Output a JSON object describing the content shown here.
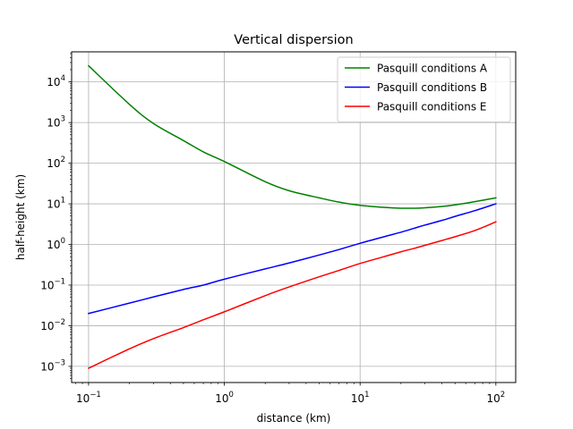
{
  "chart_data": {
    "type": "line",
    "title": "Vertical dispersion",
    "xlabel": "distance (km)",
    "ylabel": "half-height (km)",
    "xscale": "log",
    "yscale": "log",
    "xlim": [
      0.075,
      140
    ],
    "ylim": [
      0.0004,
      55000
    ],
    "xticks": [
      {
        "value": 0.1,
        "base": "10",
        "exp": "−1"
      },
      {
        "value": 1,
        "base": "10",
        "exp": "0"
      },
      {
        "value": 10,
        "base": "10",
        "exp": "1"
      },
      {
        "value": 100,
        "base": "10",
        "exp": "2"
      }
    ],
    "yticks": [
      {
        "value": 0.001,
        "base": "10",
        "exp": "−3"
      },
      {
        "value": 0.01,
        "base": "10",
        "exp": "−2"
      },
      {
        "value": 0.1,
        "base": "10",
        "exp": "−1"
      },
      {
        "value": 1,
        "base": "10",
        "exp": "0"
      },
      {
        "value": 10,
        "base": "10",
        "exp": "1"
      },
      {
        "value": 100,
        "base": "10",
        "exp": "2"
      },
      {
        "value": 1000,
        "base": "10",
        "exp": "3"
      },
      {
        "value": 10000,
        "base": "10",
        "exp": "4"
      }
    ],
    "grid": true,
    "legend_position": "top-right",
    "x": [
      0.1,
      0.2,
      0.3,
      0.5,
      0.7,
      1,
      2,
      3,
      5,
      7,
      10,
      15,
      20,
      25,
      30,
      40,
      50,
      70,
      100
    ],
    "series": [
      {
        "name": "Pasquill conditions A",
        "color": "#008000",
        "values": [
          25000,
          2800,
          950,
          360,
          190,
          110,
          35,
          21,
          14,
          11,
          9.2,
          8.2,
          7.8,
          7.8,
          8.0,
          8.6,
          9.4,
          11.3,
          14.0
        ]
      },
      {
        "name": "Pasquill conditions B",
        "color": "#0000ff",
        "values": [
          0.02,
          0.036,
          0.051,
          0.078,
          0.1,
          0.14,
          0.25,
          0.35,
          0.55,
          0.75,
          1.07,
          1.55,
          2.0,
          2.5,
          3.0,
          3.9,
          4.9,
          6.8,
          10.0
        ]
      },
      {
        "name": "Pasquill conditions E",
        "color": "#ff0000",
        "values": [
          0.0009,
          0.0027,
          0.0048,
          0.009,
          0.014,
          0.022,
          0.055,
          0.09,
          0.16,
          0.23,
          0.34,
          0.5,
          0.66,
          0.8,
          0.95,
          1.25,
          1.55,
          2.2,
          3.6
        ]
      }
    ]
  }
}
